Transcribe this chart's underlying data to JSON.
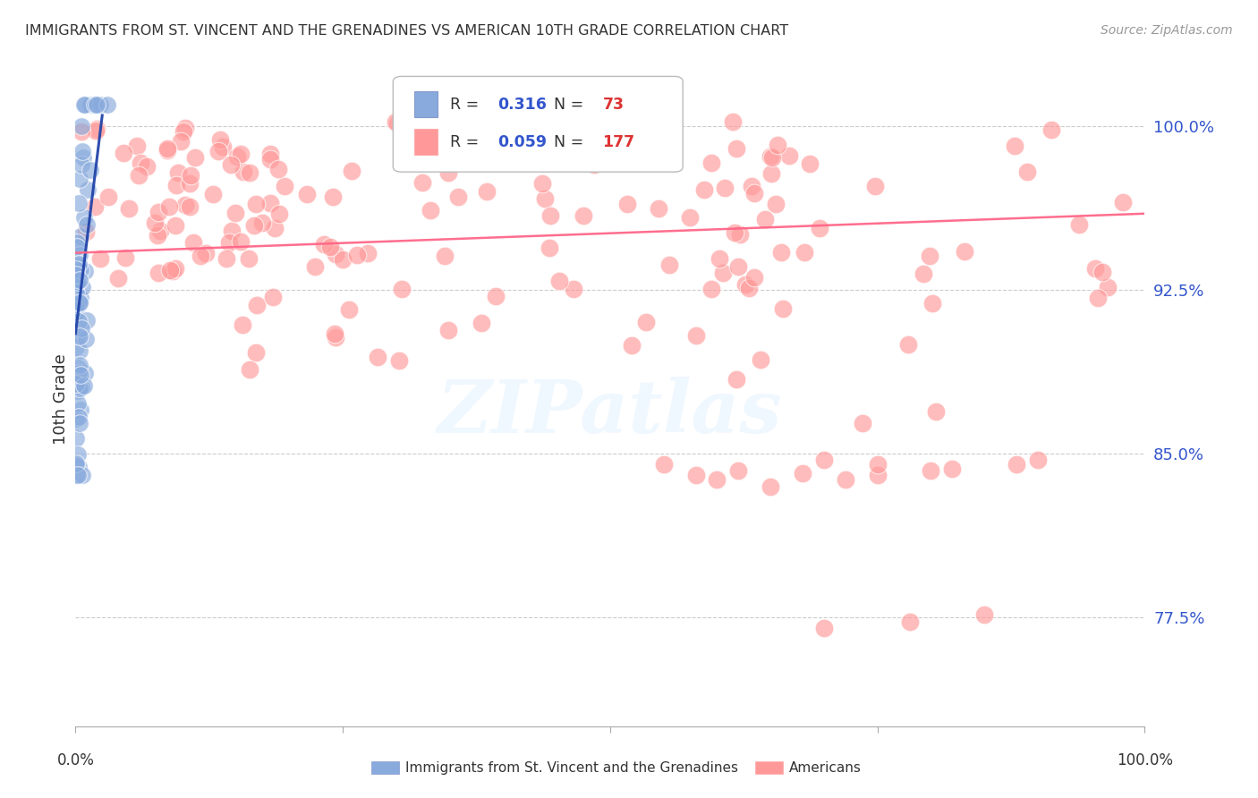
{
  "title": "IMMIGRANTS FROM ST. VINCENT AND THE GRENADINES VS AMERICAN 10TH GRADE CORRELATION CHART",
  "source": "Source: ZipAtlas.com",
  "ylabel": "10th Grade",
  "ytick_labels": [
    "77.5%",
    "85.0%",
    "92.5%",
    "100.0%"
  ],
  "ytick_values": [
    0.775,
    0.85,
    0.925,
    1.0
  ],
  "xlim": [
    0.0,
    1.0
  ],
  "ylim": [
    0.725,
    1.025
  ],
  "blue_R": 0.316,
  "blue_N": 73,
  "pink_R": 0.059,
  "pink_N": 177,
  "blue_color": "#88AADD",
  "pink_color": "#FF9999",
  "blue_line_color": "#2244AA",
  "pink_line_color": "#FF6688",
  "legend_label_blue": "Immigrants from St. Vincent and the Grenadines",
  "legend_label_pink": "Americans",
  "watermark": "ZIPatlas",
  "background_color": "#ffffff",
  "blue_seed": 12,
  "pink_seed": 7
}
